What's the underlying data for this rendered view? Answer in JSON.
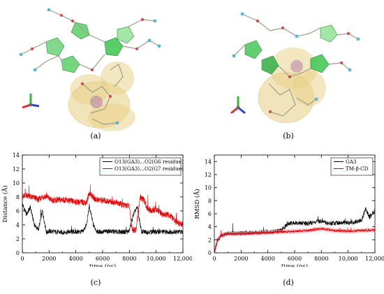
{
  "captions": {
    "a": "(a)",
    "b": "(b)",
    "c": "(c)",
    "d": "(d)"
  },
  "colors": {
    "gold_surface": "#e7cf84",
    "gold_surface_edge": "#c7a64e",
    "ring_green": "#5fcf6b",
    "ring_green_dark": "#2f8a3c",
    "carbon": "#9ca08a",
    "oxygen": "#d05050",
    "hydrogen": "#56b8cc",
    "axis_x": "#d93030",
    "axis_y": "#38b838",
    "axis_z": "#3040c8",
    "series_black": "#000000",
    "series_red": "#e00000",
    "series_pink_band": "#f3a6b8"
  },
  "chart_data": [
    {
      "id": "c",
      "type": "line",
      "title": "",
      "xlabel": "time (ps)",
      "ylabel": "Distance (Å)",
      "xlim": [
        0,
        12000
      ],
      "ylim": [
        0,
        14
      ],
      "xticks": [
        0,
        2000,
        4000,
        6000,
        8000,
        10000,
        12000
      ],
      "xtick_labels": [
        "0",
        "2000",
        "4000",
        "6000",
        "8000",
        "10,000",
        "12,000"
      ],
      "yticks": [
        0,
        2,
        4,
        6,
        8,
        10,
        12,
        14
      ],
      "ytick_labels": [
        "0",
        "2",
        "4",
        "6",
        "8",
        "10",
        "12",
        "14"
      ],
      "grid": false,
      "legend_position": "top-right",
      "series": [
        {
          "name": "O13(GA3)...O2(G6 residue)",
          "color": "#000000",
          "x": [
            0,
            300,
            600,
            900,
            1200,
            1500,
            1800,
            2000,
            2500,
            3000,
            3500,
            4000,
            4500,
            4800,
            5000,
            5300,
            5600,
            6000,
            6500,
            7000,
            7500,
            7900,
            8000,
            8300,
            8600,
            8900,
            9200,
            9500,
            10000,
            10500,
            11000,
            11500,
            12000
          ],
          "y": [
            7.0,
            5.5,
            6.5,
            4.0,
            3.3,
            6.0,
            2.9,
            3.1,
            3.0,
            2.9,
            3.0,
            3.0,
            3.0,
            4.0,
            6.7,
            4.0,
            3.0,
            3.0,
            3.1,
            3.0,
            3.0,
            3.0,
            3.2,
            5.5,
            6.5,
            3.0,
            3.0,
            3.0,
            3.0,
            3.0,
            3.0,
            3.0,
            3.0
          ]
        },
        {
          "name": "O13(GA3)...O2(G7 residue)",
          "color": "#e00000",
          "x": [
            0,
            300,
            600,
            900,
            1200,
            1500,
            1800,
            2200,
            3000,
            4000,
            4800,
            5000,
            5400,
            6000,
            7000,
            7600,
            8000,
            8200,
            8500,
            8800,
            9100,
            9300,
            9600,
            10000,
            10500,
            11000,
            11500,
            12000
          ],
          "y": [
            8.0,
            8.3,
            8.0,
            7.9,
            7.6,
            8.0,
            8.1,
            7.5,
            7.6,
            7.3,
            7.2,
            8.6,
            7.7,
            7.5,
            7.2,
            6.8,
            6.7,
            3.3,
            3.3,
            8.0,
            7.5,
            6.5,
            6.0,
            6.2,
            5.5,
            5.4,
            4.4,
            4.0
          ]
        }
      ]
    },
    {
      "id": "d",
      "type": "line",
      "title": "",
      "xlabel": "time (ps)",
      "ylabel": "RMSD (Å)",
      "xlim": [
        0,
        12000
      ],
      "ylim": [
        0,
        15
      ],
      "xticks": [
        0,
        2000,
        4000,
        6000,
        8000,
        10000,
        12000
      ],
      "xtick_labels": [
        "0",
        "2000",
        "4000",
        "6000",
        "8000",
        "10,000",
        "12,000"
      ],
      "yticks": [
        0,
        2,
        4,
        6,
        8,
        10,
        12,
        14
      ],
      "ytick_labels": [
        "0",
        "2",
        "4",
        "6",
        "8",
        "10",
        "12",
        "14"
      ],
      "grid": false,
      "legend_position": "top-right",
      "series": [
        {
          "name": "GA3",
          "color": "#000000",
          "x": [
            0,
            200,
            500,
            1000,
            2000,
            3000,
            4000,
            5000,
            5500,
            6000,
            7000,
            8000,
            8500,
            9000,
            10000,
            10500,
            11000,
            11300,
            11600,
            12000
          ],
          "y": [
            0.2,
            1.5,
            2.6,
            3.0,
            3.0,
            3.1,
            3.2,
            3.4,
            4.5,
            4.6,
            4.5,
            4.9,
            4.5,
            4.6,
            4.6,
            4.7,
            5.0,
            6.7,
            5.5,
            6.5
          ]
        },
        {
          "name": "TM-β-CD",
          "color": "#e00000",
          "x": [
            0,
            200,
            500,
            1000,
            2000,
            3000,
            4000,
            5000,
            6000,
            7000,
            8000,
            9000,
            10000,
            11000,
            12000
          ],
          "y": [
            0.2,
            1.8,
            2.7,
            2.9,
            2.9,
            3.0,
            3.1,
            3.2,
            3.3,
            3.4,
            3.7,
            3.4,
            3.3,
            3.4,
            3.5
          ]
        }
      ]
    }
  ]
}
